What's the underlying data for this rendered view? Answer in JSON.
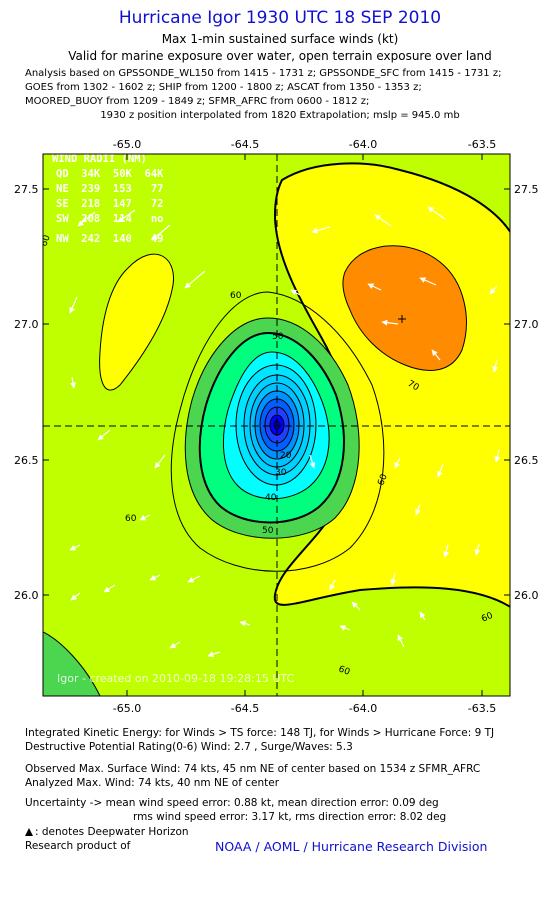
{
  "header": {
    "title": "Hurricane Igor 1930 UTC 18 SEP 2010",
    "subtitle": "Max 1-min sustained surface winds (kt)",
    "validity": "Valid for marine exposure over water, open terrain exposure over land",
    "analysis_lines": [
      "Analysis based on GPSSONDE_WL150 from 1415 - 1731 z; GPSSONDE_SFC from 1415 - 1731 z;",
      "GOES from 1302 - 1602 z; SHIP from 1200 - 1800 z; ASCAT from 1350 - 1353 z;",
      "MOORED_BUOY from 1209 - 1849 z; SFMR_AFRC from 0600 - 1812 z;"
    ],
    "interpolation": "1930 z position interpolated from 1820 Extrapolation; mslp = 945.0 mb"
  },
  "map": {
    "x_ticks": [
      "-65.0",
      "-64.5",
      "-64.0",
      "-63.5"
    ],
    "y_ticks": [
      "27.5",
      "27.0",
      "26.5",
      "26.0"
    ],
    "wind_radii": {
      "title": "WIND RADII (NM)",
      "header": "QD  34K  50K  64K",
      "rows": [
        "NE  239  153   77",
        "SE  218  147   72",
        "SW  208  114   no",
        "NW  242  140   49"
      ]
    },
    "contour_labels": [
      "60",
      "60",
      "60",
      "60",
      "60",
      "60",
      "70",
      "50",
      "50",
      "40",
      "30",
      "20"
    ],
    "watermark": "Igor - created on 2010-09-18 19:28:15 UTC",
    "colors": {
      "kt60_70": "#bfff00",
      "kt50_60": "#4cd650",
      "kt70_80": "#ffff00",
      "kt80_90": "#ff8c00",
      "kt40_50": "#00ff7f",
      "kt30_40": "#00ffff",
      "kt20_30": "#00c0ff",
      "kt_core": "#0000ff"
    }
  },
  "footer": {
    "ike": "Integrated Kinetic Energy:  for Winds > TS force: 148 TJ,  for Winds > Hurricane Force: 9 TJ",
    "dpr": "Destructive Potential Rating(0-6)   Wind: 2.7 , Surge/Waves: 5.3",
    "observed": "Observed Max. Surface Wind: 74 kts, 45 nm NE of center based on 1534 z SFMR_AFRC",
    "analyzed": "Analyzed Max. Wind: 74 kts, 40 nm NE of center",
    "uncertainty1": "Uncertainty -> mean wind speed error: 0.88 kt,   mean direction error: 0.09 deg",
    "uncertainty2": "rms wind speed error: 3.17 kt,   rms direction error: 8.02 deg",
    "deepwater": ": denotes Deepwater Horizon",
    "research": "Research product of",
    "org": "NOAA / AOML / Hurricane Research Division"
  }
}
